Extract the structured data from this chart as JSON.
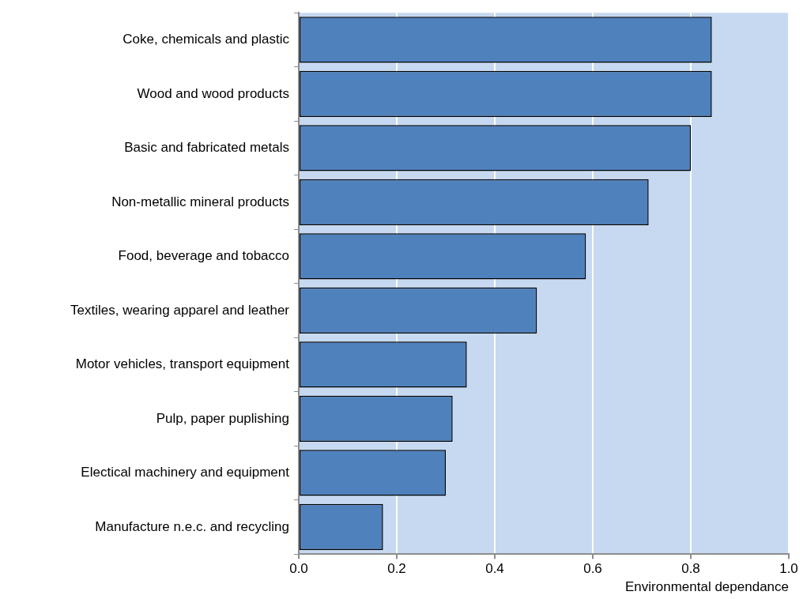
{
  "chart_data": {
    "type": "bar",
    "orientation": "horizontal",
    "xlabel": "Environmental dependance",
    "categories": [
      "Coke, chemicals and plastic",
      "Wood and wood products",
      "Basic and fabricated metals",
      "Non-metallic mineral products",
      "Food, beverage and tobacco",
      "Textiles, wearing apparel and leather",
      "Motor vehicles, transport equipment",
      "Pulp, paper puplishing",
      "Electical machinery and equipment",
      "Manufacture n.e.c. and recycling"
    ],
    "values": [
      0.843,
      0.843,
      0.8,
      0.714,
      0.586,
      0.486,
      0.343,
      0.314,
      0.3,
      0.172
    ],
    "color": "#4f81bd",
    "xlim": [
      0,
      1
    ],
    "xticks": [
      {
        "value": 0,
        "label": "0.0"
      },
      {
        "value": 0.2,
        "label": "0.2"
      },
      {
        "value": 0.4,
        "label": "0.4"
      },
      {
        "value": 0.6,
        "label": "0.6"
      },
      {
        "value": 0.8,
        "label": "0.8"
      },
      {
        "value": 1,
        "label": "1.0"
      }
    ],
    "grid": "x",
    "legend": false
  }
}
